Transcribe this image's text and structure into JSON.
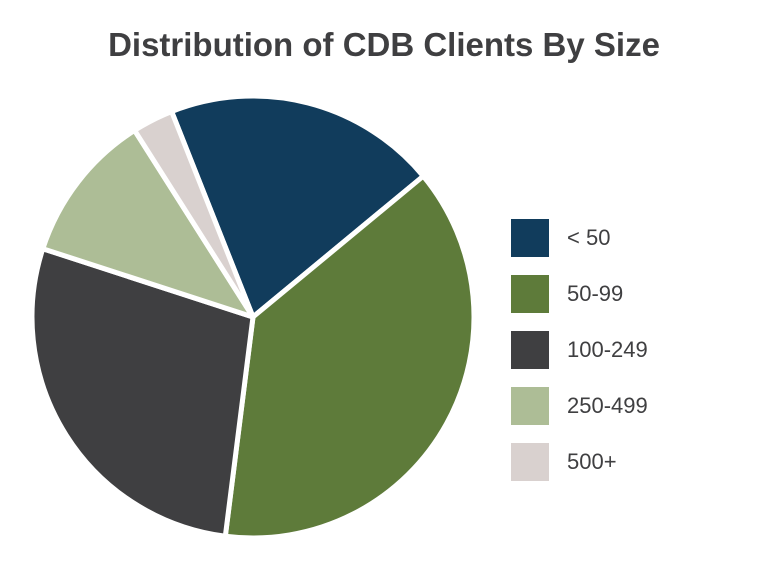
{
  "chart_data": {
    "type": "pie",
    "title": "Distribution of CDB Clients By Size",
    "slices": [
      {
        "label": "< 50",
        "value": 20,
        "color": "#113c5c"
      },
      {
        "label": "50-99",
        "value": 38,
        "color": "#5e7b3a"
      },
      {
        "label": "100-249",
        "value": 28,
        "color": "#3f3f41"
      },
      {
        "label": "250-499",
        "value": 11,
        "color": "#adbd96"
      },
      {
        "label": "500+",
        "value": 3,
        "color": "#d9d1cf"
      }
    ],
    "legend_position": "right"
  }
}
